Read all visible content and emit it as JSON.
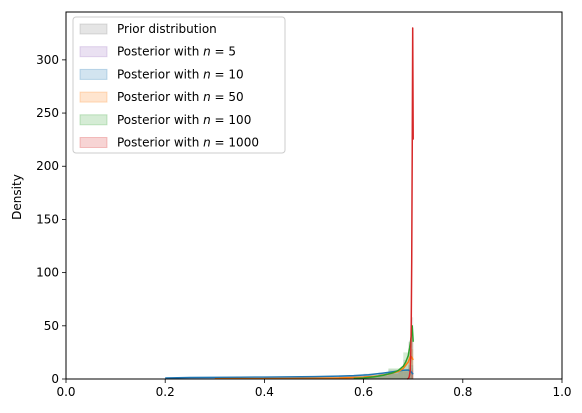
{
  "chart_data": {
    "type": "area",
    "title": "",
    "xlabel": "",
    "ylabel": "Density",
    "xlim": [
      0.0,
      1.0
    ],
    "ylim": [
      0,
      345
    ],
    "xticks": [
      0.0,
      0.2,
      0.4,
      0.6,
      0.8,
      1.0
    ],
    "xtick_labels": [
      "0.0",
      "0.2",
      "0.4",
      "0.6",
      "0.8",
      "1.0"
    ],
    "yticks": [
      0,
      50,
      100,
      150,
      200,
      250,
      300
    ],
    "ytick_labels": [
      "0",
      "50",
      "100",
      "150",
      "200",
      "250",
      "300"
    ],
    "grid": false,
    "legend_position": "top-left",
    "legend": [
      {
        "prefix": "Prior distribution",
        "math_var": "",
        "math_rest": "",
        "color": "#7f7f7f"
      },
      {
        "prefix": "Posterior with ",
        "math_var": "n",
        "math_rest": " = 5",
        "color": "#9467bd"
      },
      {
        "prefix": "Posterior with ",
        "math_var": "n",
        "math_rest": " = 10",
        "color": "#1f77b4"
      },
      {
        "prefix": "Posterior with ",
        "math_var": "n",
        "math_rest": " = 50",
        "color": "#ff7f0e"
      },
      {
        "prefix": "Posterior with ",
        "math_var": "n",
        "math_rest": " = 100",
        "color": "#2ca02c"
      },
      {
        "prefix": "Posterior with ",
        "math_var": "n",
        "math_rest": " = 1000",
        "color": "#d62728"
      }
    ],
    "histograms": [
      {
        "color": "#7f7f7f",
        "bins": [
          [
            0.2,
            0.3,
            0.6
          ],
          [
            0.3,
            0.4,
            1.0
          ],
          [
            0.4,
            0.5,
            1.5
          ],
          [
            0.5,
            0.6,
            2.5
          ],
          [
            0.6,
            0.65,
            5
          ],
          [
            0.65,
            0.68,
            9
          ],
          [
            0.68,
            0.69,
            18
          ],
          [
            0.69,
            0.695,
            35
          ],
          [
            0.695,
            0.7,
            58
          ]
        ]
      },
      {
        "color": "#9467bd",
        "bins": [
          [
            0.2,
            0.4,
            0.8
          ],
          [
            0.4,
            0.55,
            1.6
          ],
          [
            0.55,
            0.63,
            3
          ],
          [
            0.63,
            0.67,
            5
          ],
          [
            0.67,
            0.69,
            7
          ],
          [
            0.69,
            0.7,
            10
          ]
        ]
      },
      {
        "color": "#1f77b4",
        "bins": [
          [
            0.2,
            0.4,
            0.9
          ],
          [
            0.4,
            0.55,
            1.8
          ],
          [
            0.55,
            0.63,
            3.5
          ],
          [
            0.63,
            0.67,
            6
          ],
          [
            0.67,
            0.69,
            9
          ],
          [
            0.69,
            0.7,
            13
          ]
        ]
      },
      {
        "color": "#ff7f0e",
        "bins": [
          [
            0.2,
            0.4,
            0.5
          ],
          [
            0.4,
            0.55,
            1.2
          ],
          [
            0.55,
            0.63,
            2.5
          ],
          [
            0.63,
            0.67,
            5
          ],
          [
            0.67,
            0.69,
            9
          ],
          [
            0.69,
            0.7,
            28
          ]
        ]
      },
      {
        "color": "#2ca02c",
        "bins": [
          [
            0.6,
            0.65,
            3
          ],
          [
            0.65,
            0.68,
            10
          ],
          [
            0.68,
            0.695,
            25
          ],
          [
            0.695,
            0.7,
            40
          ]
        ]
      },
      {
        "color": "#d62728",
        "bins": [
          [
            0.695,
            0.7,
            8
          ],
          [
            0.698,
            0.7,
            40
          ]
        ]
      }
    ],
    "series": [
      {
        "color": "#1f77b4",
        "x": [
          0.2,
          0.25,
          0.3,
          0.35,
          0.4,
          0.45,
          0.5,
          0.55,
          0.58,
          0.61,
          0.63,
          0.65,
          0.67,
          0.68,
          0.69,
          0.695,
          0.7
        ],
        "y": [
          1.0,
          1.4,
          1.5,
          1.6,
          1.8,
          2.0,
          2.2,
          2.7,
          3.2,
          4.0,
          5.0,
          6.2,
          7.5,
          8.2,
          8.5,
          7.0,
          4.5
        ]
      },
      {
        "color": "#ff7f0e",
        "x": [
          0.3,
          0.35,
          0.4,
          0.45,
          0.5,
          0.55,
          0.6,
          0.63,
          0.65,
          0.67,
          0.68,
          0.69,
          0.695,
          0.7
        ],
        "y": [
          0.2,
          0.3,
          0.4,
          0.5,
          0.7,
          1.0,
          1.8,
          3.0,
          4.5,
          7.0,
          10.0,
          16.0,
          22.0,
          18.0
        ]
      },
      {
        "color": "#2ca02c",
        "x": [
          0.58,
          0.6,
          0.62,
          0.64,
          0.66,
          0.67,
          0.68,
          0.685,
          0.69,
          0.693,
          0.696,
          0.698,
          0.7
        ],
        "y": [
          0.5,
          1.0,
          2.0,
          3.5,
          6.0,
          8.0,
          12.0,
          16.0,
          22.0,
          30.0,
          40.0,
          50.0,
          35.0
        ]
      },
      {
        "color": "#d62728",
        "x": [
          0.688,
          0.69,
          0.692,
          0.694,
          0.695,
          0.696,
          0.697,
          0.698,
          0.699,
          0.7
        ],
        "y": [
          0.0,
          0.3,
          2.0,
          8.0,
          20.0,
          50.0,
          110.0,
          210.0,
          330.0,
          225.0
        ]
      }
    ]
  }
}
